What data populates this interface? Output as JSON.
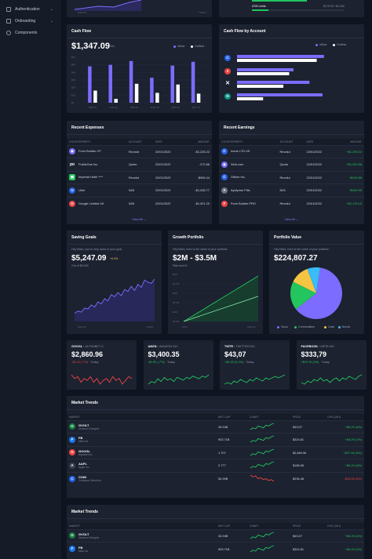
{
  "sidebar": {
    "items": [
      {
        "label": "Authentication"
      },
      {
        "label": "Onboarding"
      },
      {
        "label": "Components"
      }
    ]
  },
  "top": {
    "atm_label": "ATM Limits",
    "atm_value": "$175.00 / $1,000",
    "tick_left": "MAR 20",
    "tick_right": "TODAY"
  },
  "cashflow": {
    "title": "Cash Flow",
    "value": "$1,347.09",
    "period": "This",
    "legend_inflow": "Inflow",
    "legend_outflow": "Outflow",
    "yticks": [
      "$6K",
      "$5K",
      "$4K",
      "$3K",
      "$2K",
      "$1K",
      "$0"
    ],
    "chart_data": {
      "type": "bar",
      "categories": [
        "FEB 22",
        "JAN 22",
        "FEB 22",
        "MAR 22",
        "APR 22",
        "MAY 22"
      ],
      "series": [
        {
          "name": "Inflow",
          "values": [
            4.8,
            5.0,
            5.5,
            3.3,
            4.9,
            5.4
          ]
        },
        {
          "name": "Outflow",
          "values": [
            1.6,
            0.5,
            2.5,
            1.3,
            2.4,
            1.2
          ]
        }
      ],
      "ylim": [
        0,
        6
      ]
    }
  },
  "cfaccount": {
    "title": "Cash Flow by Account",
    "legend_inflow": "Inflow",
    "legend_outflow": "Outflow",
    "chart_data": {
      "type": "bar",
      "orientation": "horizontal",
      "series": [
        {
          "name": "Inflow",
          "values": [
            120,
            78,
            100,
            118
          ]
        },
        {
          "name": "Outflow",
          "values": [
            110,
            72,
            64,
            36
          ]
        }
      ]
    }
  },
  "expenses": {
    "title": "Recent Expenses",
    "cols": [
      "COUNTERPARTY",
      "ACCOUNT",
      "DATE",
      "AMOUNT"
    ],
    "view_all": "View All",
    "rows": [
      {
        "name": "Form Builder CP",
        "account": "Revolut",
        "date": "22/01/2022",
        "amount": "-$1,228.22"
      },
      {
        "name": "PublicOne Inc.",
        "account": "Qonto",
        "date": "22/01/2022",
        "amount": "-272.88"
      },
      {
        "name": "Imperial Hotel ****",
        "account": "Revolut",
        "date": "22/01/2022",
        "amount": "-$906.44"
      },
      {
        "name": "Uber",
        "account": "N26",
        "date": "22/01/2022",
        "amount": "-$1,028.77"
      },
      {
        "name": "Google Limited UK",
        "account": "N26",
        "date": "22/01/2022",
        "amount": "-$1,921.29"
      }
    ]
  },
  "earnings": {
    "title": "Recent Earnings",
    "cols": [
      "COUNTERPARTY",
      "ACCOUNT",
      "DATE",
      "AMOUNT"
    ],
    "view_all": "View All",
    "rows": [
      {
        "name": "Acme LTD UK",
        "account": "Revolut",
        "date": "22/01/2022",
        "amount": "+$1,299.22"
      },
      {
        "name": "Web.com",
        "account": "Qonto",
        "date": "22/01/2022",
        "amount": "+$1,200.88"
      },
      {
        "name": "Github Inc.",
        "account": "Revolut",
        "date": "22/01/2022",
        "amount": "+$249.88"
      },
      {
        "name": "Aprilynne Pills",
        "account": "N26",
        "date": "22/01/2022",
        "amount": "+$499.99"
      },
      {
        "name": "Form Builder PRO",
        "account": "Revolut",
        "date": "22/01/2022",
        "amount": "+$2,178.15"
      }
    ]
  },
  "savings": {
    "title": "Saving Goals",
    "greet": "Hey Mark, you're very close to your goal.",
    "value": "$5,247.09",
    "pct": "+0.4%",
    "sub": "Out of $6,000",
    "tick_left": "MAR 20",
    "tick_right": "TODAY",
    "chart_data": {
      "type": "area",
      "values": [
        8,
        10,
        9,
        13,
        12,
        16,
        14,
        19,
        17,
        22,
        20,
        26,
        24,
        28,
        25,
        31,
        29,
        34,
        30,
        36,
        33,
        40,
        38,
        37,
        41
      ]
    }
  },
  "growth": {
    "title": "Growth Portfolio",
    "greet": "Hey Mark, here is the value of your portfolio.",
    "value": "$2M - $3.5M",
    "sub": "Risk level 8",
    "yticks": [
      "$3M",
      "$2.5M",
      "$2M",
      "$1.5M",
      "$1M",
      "$0.5M"
    ],
    "tick_left": "2021",
    "tick_right": "AGE 65",
    "chart_data": {
      "type": "area",
      "series": [
        {
          "values": [
            0,
            3.2
          ]
        },
        {
          "values": [
            0,
            2.0
          ]
        }
      ]
    }
  },
  "portfolio": {
    "title": "Portfolio Value",
    "greet": "Hey Mark, here is the value of your portfolio.",
    "value": "$224,807.27",
    "legend": [
      "Stock",
      "Commodities",
      "Cash",
      "Bonds"
    ],
    "chart_data": {
      "type": "pie",
      "categories": [
        "Stock",
        "Commodities",
        "Cash",
        "Bonds"
      ],
      "values": [
        62,
        18,
        12,
        8
      ],
      "colors": [
        "#7c6cff",
        "#22c55e",
        "#f5c542",
        "#38bdf8"
      ]
    }
  },
  "stocks": [
    {
      "sym": "GOOGL",
      "name": "ALPHABET C.",
      "price": "$2,860.96",
      "chg": "-$4.14 (-7%)",
      "when": "Today",
      "color": "#ef4444",
      "pts": [
        10,
        8,
        9,
        6,
        8,
        7,
        9,
        6,
        8,
        5,
        7,
        8,
        6,
        9,
        7,
        8,
        5,
        7,
        9,
        8
      ]
    },
    {
      "sym": "AMZN",
      "name": "AMAZON INC.",
      "price": "$3,400.35",
      "chg": "-$4.90 (-7%)",
      "when": "Today",
      "color": "#22c55e",
      "pts": [
        4,
        6,
        5,
        8,
        6,
        9,
        7,
        8,
        6,
        9,
        8,
        7,
        9,
        8,
        10,
        9,
        8,
        10,
        9,
        11
      ]
    },
    {
      "sym": "TWTR",
      "name": "TWITTER INC.",
      "price": "$43,07",
      "chg": "+$4.29 (0.1%)",
      "when": "Today",
      "color": "#22c55e",
      "pts": [
        5,
        6,
        5,
        7,
        6,
        8,
        7,
        6,
        8,
        7,
        9,
        8,
        7,
        9,
        8,
        9,
        10,
        9,
        10,
        11
      ]
    },
    {
      "sym": "FACEBOOK",
      "name": "META INC.",
      "price": "$333,79",
      "chg": "+$19.76 (4%)",
      "when": "Today",
      "color": "#22c55e",
      "pts": [
        6,
        5,
        7,
        6,
        8,
        7,
        9,
        7,
        8,
        6,
        8,
        9,
        7,
        9,
        8,
        10,
        9,
        8,
        10,
        11
      ]
    }
  ],
  "trends": {
    "title": "Market Trends",
    "cols": [
      "MARKET",
      "MKT CAP",
      "CHART",
      "PRICE",
      "CHG (24H)"
    ],
    "rows": [
      {
        "sym": "GVOLT",
        "name": "Givemon Energies",
        "cap": "33.94B",
        "price": "$43,07",
        "chg": "+$4.29 (4%)",
        "color": "#22c55e",
        "av": "#15803d"
      },
      {
        "sym": "FB",
        "name": "Meta Inc.",
        "cap": "903.71B",
        "price": "$324.81",
        "chg": "+$4.29 (1%)",
        "color": "#22c55e",
        "av": "#1877f2"
      },
      {
        "sym": "GOOGL",
        "name": "Alphabet Inc.",
        "cap": "1.707",
        "price": "$2,860.96",
        "chg": "+$37.94 (4%)",
        "color": "#22c55e",
        "av": "#ef4444"
      },
      {
        "sym": "AAPL",
        "name": "Apple Inc.",
        "cap": "2.777",
        "price": "$186.55",
        "chg": "+$4.29 (4%)",
        "color": "#22c55e",
        "av": "#374151"
      },
      {
        "sym": "COIN",
        "name": "Coinbase Global Inc.",
        "cap": "50.99B",
        "price": "$236.48",
        "chg": "-$24.06 (4%)",
        "color": "#ef4444",
        "av": "#2563eb"
      }
    ]
  },
  "trends2": {
    "title": "Market Trends",
    "cols": [
      "MARKET",
      "MKT CAP",
      "CHART",
      "PRICE",
      "CHG (24H)"
    ],
    "rows": [
      {
        "sym": "GVOLT",
        "name": "Givemon Energies",
        "cap": "33.94B",
        "price": "$43,07",
        "chg": "+$4.29 (4%)",
        "color": "#22c55e",
        "av": "#15803d"
      },
      {
        "sym": "FB",
        "name": "Meta Inc.",
        "cap": "903.71B",
        "price": "$324.81",
        "chg": "+$4.29 (1%)",
        "color": "#22c55e",
        "av": "#1877f2"
      }
    ]
  }
}
